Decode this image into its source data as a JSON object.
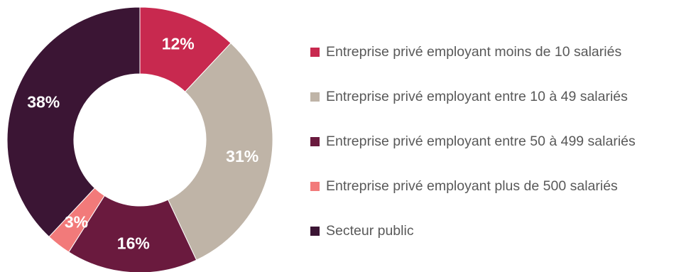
{
  "chart_data": {
    "type": "pie",
    "variant": "donut",
    "start_angle_deg": 0,
    "direction": "clockwise",
    "legend_position": "right",
    "categories": [
      "Entreprise privé employant moins de 10 salariés",
      "Entreprise privé employant entre 10 à 49 salariés",
      "Entreprise privé employant entre 50 à 499 salariés",
      "Entreprise privé employant plus de 500 salariés",
      "Secteur public"
    ],
    "values": [
      12,
      31,
      16,
      3,
      38
    ],
    "data_labels": [
      "12%",
      "31%",
      "16%",
      "3%",
      "38%"
    ],
    "colors": [
      "#C8294F",
      "#BFB4A7",
      "#6A1A3E",
      "#F27A7A",
      "#3B1534"
    ]
  }
}
